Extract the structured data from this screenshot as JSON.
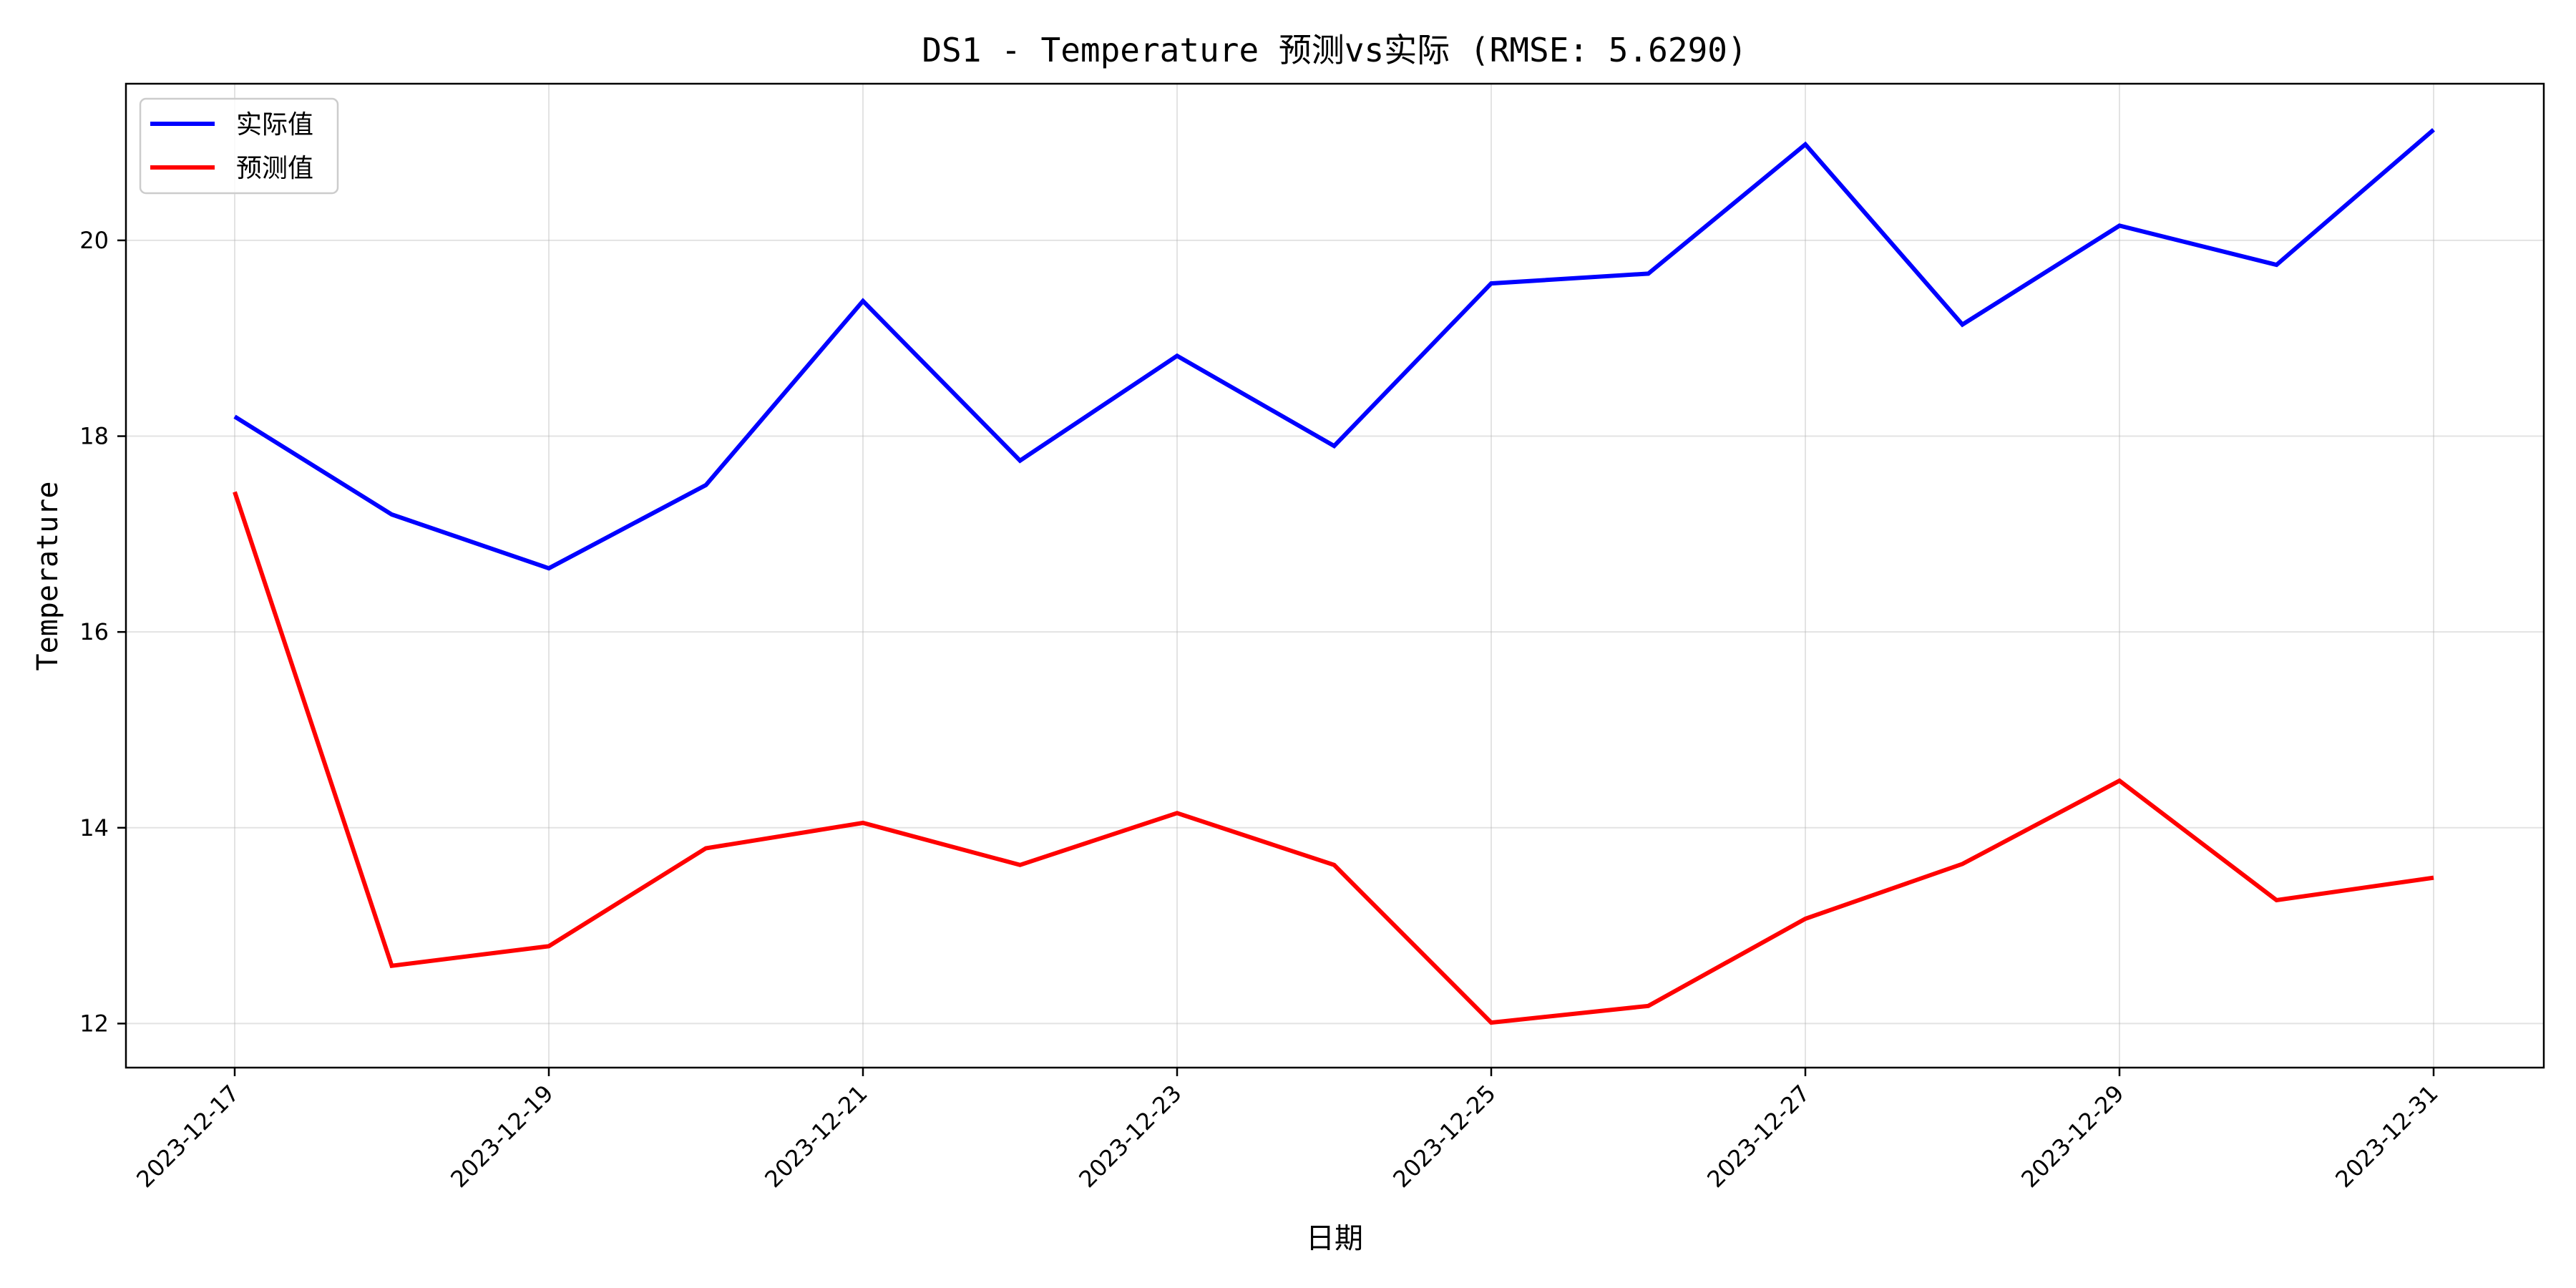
{
  "chart_data": {
    "type": "line",
    "title": "DS1 - Temperature 预测vs实际 (RMSE: 5.6290)",
    "xlabel": "日期",
    "ylabel": "Temperature",
    "x": [
      "2023-12-17",
      "2023-12-18",
      "2023-12-19",
      "2023-12-20",
      "2023-12-21",
      "2023-12-22",
      "2023-12-23",
      "2023-12-24",
      "2023-12-25",
      "2023-12-26",
      "2023-12-27",
      "2023-12-28",
      "2023-12-29",
      "2023-12-30",
      "2023-12-31"
    ],
    "x_ticks": [
      "2023-12-17",
      "2023-12-19",
      "2023-12-21",
      "2023-12-23",
      "2023-12-25",
      "2023-12-27",
      "2023-12-29",
      "2023-12-31"
    ],
    "y_ticks": [
      12,
      14,
      16,
      18,
      20
    ],
    "ylim": [
      11.55,
      21.6
    ],
    "grid": true,
    "legend_position": "top-left",
    "series": [
      {
        "name": "实际值",
        "color": "#0000ff",
        "values": [
          18.2,
          17.2,
          16.65,
          17.5,
          19.38,
          17.75,
          18.82,
          17.9,
          19.56,
          19.66,
          20.98,
          19.14,
          20.15,
          19.75,
          21.13
        ]
      },
      {
        "name": "预测值",
        "color": "#ff0000",
        "values": [
          17.43,
          12.59,
          12.79,
          13.79,
          14.05,
          13.62,
          14.15,
          13.62,
          12.01,
          12.18,
          13.07,
          13.63,
          14.48,
          13.26,
          13.49
        ]
      }
    ]
  }
}
